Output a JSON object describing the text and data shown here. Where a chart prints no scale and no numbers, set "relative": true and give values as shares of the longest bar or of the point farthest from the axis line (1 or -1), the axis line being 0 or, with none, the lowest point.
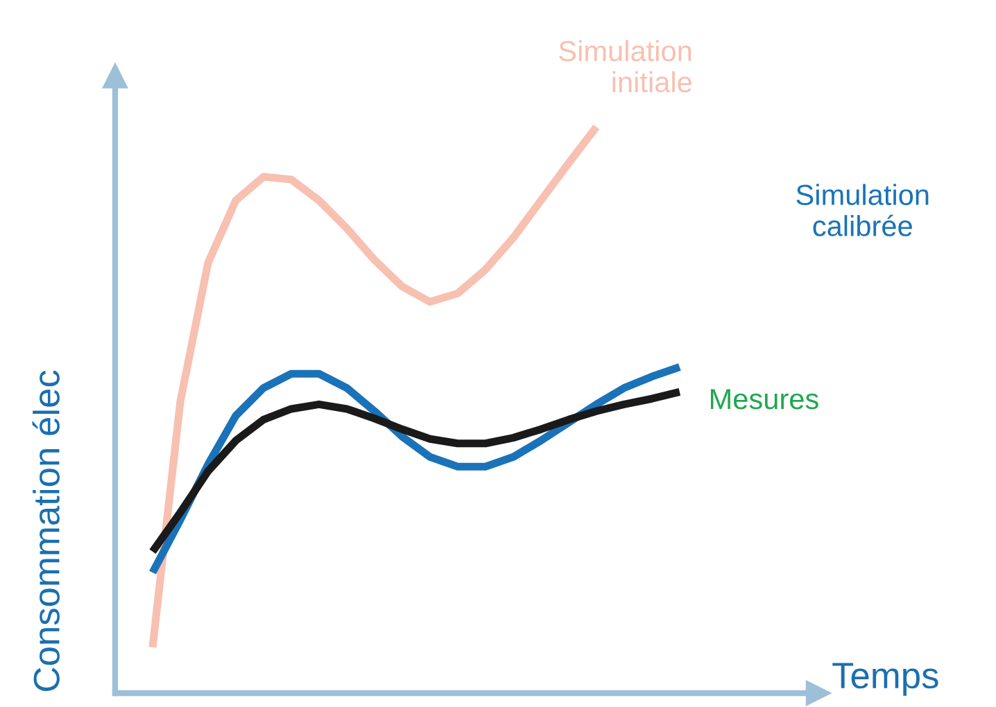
{
  "chart_data": {
    "type": "line",
    "relative": true,
    "xlabel": "Temps",
    "ylabel": "Consommation élec",
    "legend": false,
    "marker": "none",
    "line_style": "solid",
    "categories": [
      null,
      null,
      null,
      null,
      null,
      null,
      null,
      null,
      null,
      null,
      null,
      null,
      null,
      null,
      null,
      null,
      null,
      null,
      null,
      null
    ],
    "series": [
      {
        "name": "Simulation\ninitiale",
        "color": "#f7c0b0",
        "values": [
          0.081,
          0.515,
          0.76,
          0.87,
          0.912,
          0.907,
          0.87,
          0.821,
          0.765,
          0.718,
          0.691,
          0.706,
          0.748,
          0.804,
          0.87,
          0.936,
          1.0,
          null,
          null,
          null
        ]
      },
      {
        "name": "Simulation\ncalibrée",
        "color": "#1a73b8",
        "values": [
          0.213,
          0.306,
          0.404,
          0.49,
          0.539,
          0.564,
          0.564,
          0.539,
          0.498,
          0.453,
          0.417,
          0.4,
          0.4,
          0.417,
          0.446,
          0.478,
          0.51,
          0.539,
          0.559,
          0.576
        ]
      },
      {
        "name": "Mesures",
        "color": "#1a1a1a",
        "values": [
          0.25,
          0.319,
          0.392,
          0.446,
          0.483,
          0.502,
          0.51,
          0.502,
          0.485,
          0.466,
          0.449,
          0.441,
          0.441,
          0.451,
          0.466,
          0.483,
          0.498,
          0.51,
          0.52,
          0.532
        ]
      }
    ]
  }
}
